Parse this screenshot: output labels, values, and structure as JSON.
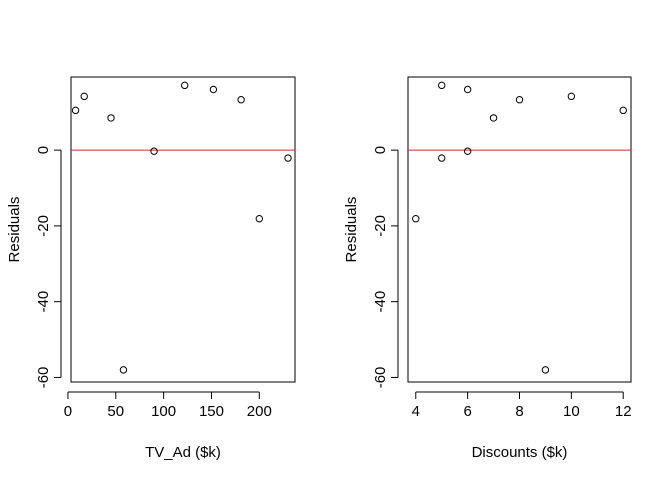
{
  "chart_data": [
    {
      "type": "scatter",
      "title": "",
      "xlabel": "TV_Ad ($k)",
      "ylabel": "Residuals",
      "xlim": [
        3.2,
        237.3
      ],
      "ylim": [
        -61.2,
        19.3
      ],
      "xticks": [
        0,
        50,
        100,
        150,
        200
      ],
      "yticks": [
        0,
        -20,
        -40,
        -60
      ],
      "reference_line": {
        "y": 0,
        "color": "#d62728"
      },
      "points": [
        {
          "x": 8,
          "y": 10.5
        },
        {
          "x": 17,
          "y": 14.2
        },
        {
          "x": 45,
          "y": 8.5
        },
        {
          "x": 58,
          "y": -58.0
        },
        {
          "x": 90,
          "y": -0.3
        },
        {
          "x": 122,
          "y": 17.1
        },
        {
          "x": 152,
          "y": 16.0
        },
        {
          "x": 181,
          "y": 13.3
        },
        {
          "x": 200,
          "y": -18.1
        },
        {
          "x": 230,
          "y": -2.1
        }
      ]
    },
    {
      "type": "scatter",
      "title": "",
      "xlabel": "Discounts ($k)",
      "ylabel": "Residuals",
      "xlim": [
        3.7,
        12.3
      ],
      "ylim": [
        -61.2,
        19.3
      ],
      "xticks": [
        4,
        6,
        8,
        10,
        12
      ],
      "yticks": [
        0,
        -20,
        -40,
        -60
      ],
      "reference_line": {
        "y": 0,
        "color": "#d62728"
      },
      "points": [
        {
          "x": 4,
          "y": -18.1
        },
        {
          "x": 5,
          "y": 17.1
        },
        {
          "x": 5,
          "y": -2.1
        },
        {
          "x": 6,
          "y": 16.0
        },
        {
          "x": 6,
          "y": -0.3
        },
        {
          "x": 7,
          "y": 8.5
        },
        {
          "x": 8,
          "y": 13.3
        },
        {
          "x": 9,
          "y": -58.0
        },
        {
          "x": 10,
          "y": 14.2
        },
        {
          "x": 12,
          "y": 10.5
        }
      ]
    }
  ]
}
